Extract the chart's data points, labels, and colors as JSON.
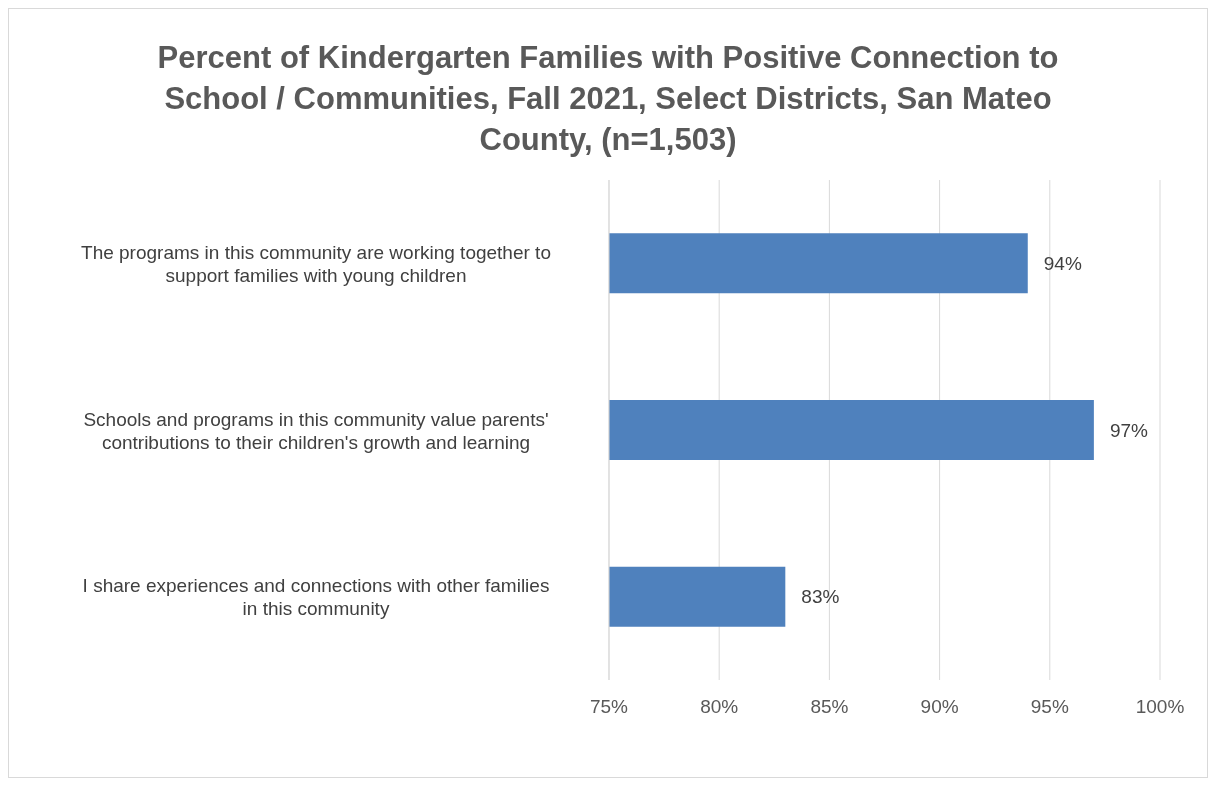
{
  "chart_data": {
    "type": "bar",
    "orientation": "horizontal",
    "title": "Percent of Kindergarten Families with Positive Connection to School / Communities, Fall 2021, Select Districts, San Mateo County, (n=1,503)",
    "categories": [
      "The programs in this community are working together to support families with young children",
      "Schools and programs in this community value parents' contributions to their children's growth and learning",
      "I share experiences and connections with other families in this community"
    ],
    "values": [
      94,
      97,
      83
    ],
    "value_labels": [
      "94%",
      "97%",
      "83%"
    ],
    "color": "#4f81bd",
    "xlim": [
      75,
      100
    ],
    "xticks": [
      {
        "value": 75,
        "label": "75%"
      },
      {
        "value": 80,
        "label": "80%"
      },
      {
        "value": 85,
        "label": "85%"
      },
      {
        "value": 90,
        "label": "90%"
      },
      {
        "value": 95,
        "label": "95%"
      },
      {
        "value": 100,
        "label": "100%"
      }
    ],
    "grid": "x"
  }
}
